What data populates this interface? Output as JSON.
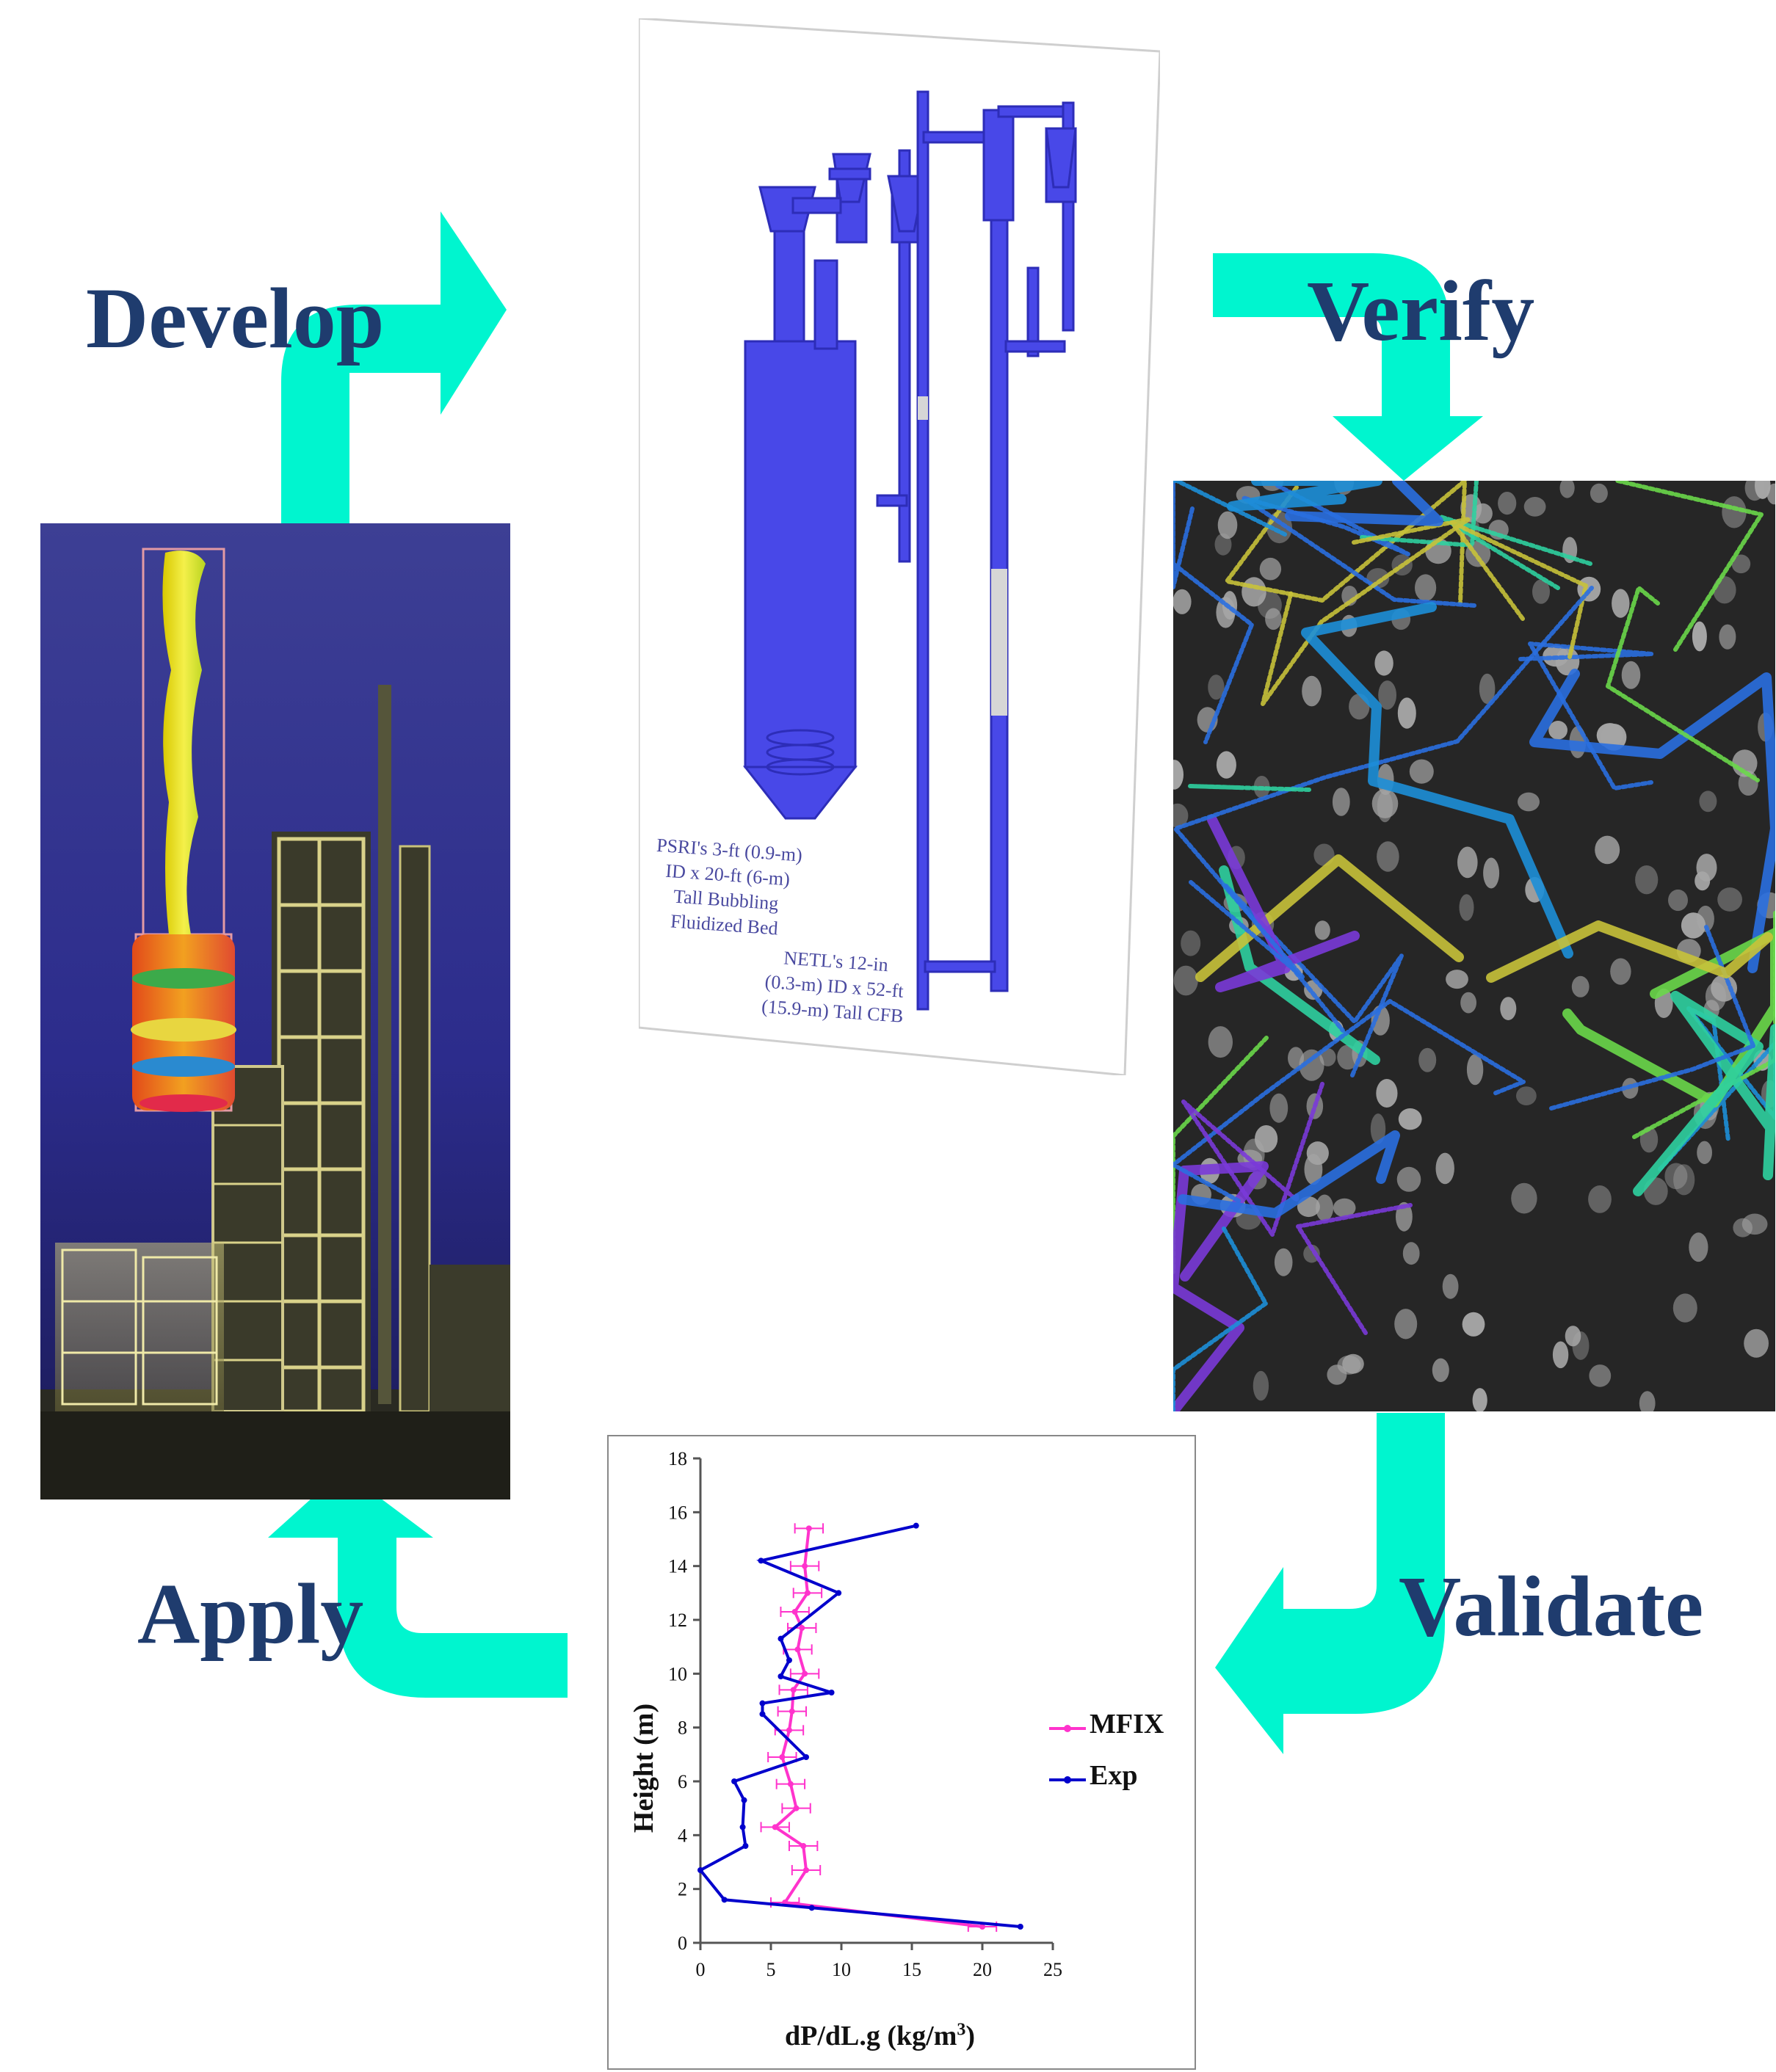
{
  "cycle": {
    "develop_label": "Develop",
    "verify_label": "Verify",
    "validate_label": "Validate",
    "apply_label": "Apply",
    "arrow_color": "#00f5cf",
    "label_color": "#1f3c6e"
  },
  "develop_panel": {
    "psri_caption": "PSRI's 3-ft (0.9-m)\nID x 20-ft (6-m)\nTall Bubbling\nFluidized Bed",
    "netl_caption": "NETL's 12-in\n(0.3-m) ID x 52-ft\n(15.9-m) Tall CFB",
    "equipment_color": "#4848e8"
  },
  "chart_data": {
    "type": "line",
    "xlabel": "dP/dL.g (kg/m3)",
    "ylabel": "Height (m)",
    "xlim": [
      0,
      25
    ],
    "ylim": [
      0,
      18
    ],
    "xticks": [
      0,
      5,
      10,
      15,
      20,
      25
    ],
    "yticks": [
      0,
      2,
      4,
      6,
      8,
      10,
      12,
      14,
      16,
      18
    ],
    "legend": "right",
    "series": [
      {
        "name": "MFIX",
        "color": "#ff33cc",
        "error_bars": true,
        "points": [
          [
            20.0,
            0.6
          ],
          [
            6.0,
            1.5
          ],
          [
            7.5,
            2.7
          ],
          [
            7.3,
            3.6
          ],
          [
            5.3,
            4.3
          ],
          [
            6.8,
            5.0
          ],
          [
            6.4,
            5.9
          ],
          [
            5.8,
            6.9
          ],
          [
            6.3,
            7.9
          ],
          [
            6.5,
            8.6
          ],
          [
            6.6,
            9.4
          ],
          [
            7.4,
            10.0
          ],
          [
            6.9,
            10.9
          ],
          [
            7.2,
            11.7
          ],
          [
            6.7,
            12.3
          ],
          [
            7.6,
            13.0
          ],
          [
            7.4,
            14.0
          ],
          [
            7.7,
            15.4
          ]
        ]
      },
      {
        "name": "Exp",
        "color": "#0000cc",
        "error_bars": false,
        "points": [
          [
            22.7,
            0.6
          ],
          [
            7.9,
            1.3
          ],
          [
            1.7,
            1.6
          ],
          [
            0.0,
            2.7
          ],
          [
            3.2,
            3.6
          ],
          [
            3.0,
            4.3
          ],
          [
            3.1,
            5.3
          ],
          [
            2.4,
            6.0
          ],
          [
            7.5,
            6.9
          ],
          [
            4.4,
            8.5
          ],
          [
            4.4,
            8.9
          ],
          [
            9.3,
            9.3
          ],
          [
            5.7,
            9.9
          ],
          [
            6.3,
            10.5
          ],
          [
            5.7,
            11.3
          ],
          [
            9.8,
            13.0
          ],
          [
            4.3,
            14.2
          ],
          [
            15.3,
            15.5
          ]
        ]
      }
    ]
  }
}
